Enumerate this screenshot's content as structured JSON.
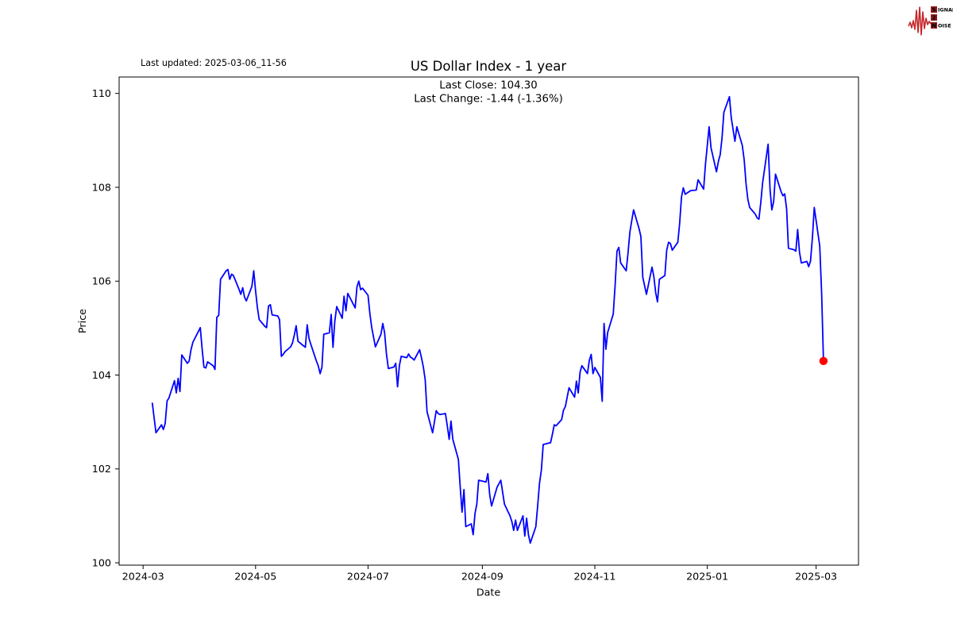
{
  "header": {
    "last_updated": "Last updated: 2025-03-06_11-56"
  },
  "logo": {
    "signal_initial": "S",
    "signal_rest": "IGNAL",
    "two": "2",
    "noise_initial": "N",
    "noise_rest": "OISE",
    "waveform_color": "#c4272b",
    "box_color": "#8e1d1d",
    "text_color": "#1a1a1a"
  },
  "chart_data": {
    "type": "line",
    "title": "US Dollar Index - 1 year",
    "subtitle_lines": [
      "Last Close: 104.30",
      "Last Change: -1.44 (-1.36%)"
    ],
    "xlabel": "Date",
    "ylabel": "Price",
    "last_close": 104.3,
    "last_change_abs": -1.44,
    "last_change_pct": -1.36,
    "line_color": "#0000ff",
    "marker_color": "#ff0000",
    "axis_color": "#000000",
    "grid": false,
    "legend_position": "none",
    "ylim": [
      99.95,
      110.35
    ],
    "yticks": [
      100,
      102,
      104,
      106,
      108,
      110
    ],
    "xlim": [
      "2024-02-17",
      "2025-03-24"
    ],
    "xticks": [
      {
        "value": "2024-03-01",
        "label": "2024-03"
      },
      {
        "value": "2024-05-01",
        "label": "2024-05"
      },
      {
        "value": "2024-07-01",
        "label": "2024-07"
      },
      {
        "value": "2024-09-01",
        "label": "2024-09"
      },
      {
        "value": "2024-11-01",
        "label": "2024-11"
      },
      {
        "value": "2025-01-01",
        "label": "2025-01"
      },
      {
        "value": "2025-03-01",
        "label": "2025-03"
      }
    ],
    "series": [
      {
        "name": "US Dollar Index",
        "points": [
          [
            "2024-03-06",
            103.4
          ],
          [
            "2024-03-08",
            102.77
          ],
          [
            "2024-03-11",
            102.94
          ],
          [
            "2024-03-12",
            102.84
          ],
          [
            "2024-03-13",
            102.97
          ],
          [
            "2024-03-14",
            103.45
          ],
          [
            "2024-03-15",
            103.51
          ],
          [
            "2024-03-18",
            103.88
          ],
          [
            "2024-03-19",
            103.62
          ],
          [
            "2024-03-20",
            103.93
          ],
          [
            "2024-03-21",
            103.65
          ],
          [
            "2024-03-22",
            104.43
          ],
          [
            "2024-03-25",
            104.25
          ],
          [
            "2024-03-26",
            104.3
          ],
          [
            "2024-03-27",
            104.54
          ],
          [
            "2024-03-28",
            104.7
          ],
          [
            "2024-04-01",
            105.01
          ],
          [
            "2024-04-02",
            104.56
          ],
          [
            "2024-04-03",
            104.17
          ],
          [
            "2024-04-04",
            104.15
          ],
          [
            "2024-04-05",
            104.28
          ],
          [
            "2024-04-08",
            104.2
          ],
          [
            "2024-04-09",
            104.12
          ],
          [
            "2024-04-10",
            105.23
          ],
          [
            "2024-04-11",
            105.27
          ],
          [
            "2024-04-12",
            106.04
          ],
          [
            "2024-04-15",
            106.22
          ],
          [
            "2024-04-16",
            106.25
          ],
          [
            "2024-04-17",
            106.04
          ],
          [
            "2024-04-18",
            106.15
          ],
          [
            "2024-04-19",
            106.12
          ],
          [
            "2024-04-22",
            105.83
          ],
          [
            "2024-04-23",
            105.72
          ],
          [
            "2024-04-24",
            105.86
          ],
          [
            "2024-04-25",
            105.66
          ],
          [
            "2024-04-26",
            105.58
          ],
          [
            "2024-04-29",
            105.89
          ],
          [
            "2024-04-30",
            106.22
          ],
          [
            "2024-05-01",
            105.8
          ],
          [
            "2024-05-02",
            105.44
          ],
          [
            "2024-05-03",
            105.18
          ],
          [
            "2024-05-06",
            105.04
          ],
          [
            "2024-05-07",
            105.01
          ],
          [
            "2024-05-08",
            105.47
          ],
          [
            "2024-05-09",
            105.5
          ],
          [
            "2024-05-10",
            105.28
          ],
          [
            "2024-05-13",
            105.26
          ],
          [
            "2024-05-14",
            105.18
          ],
          [
            "2024-05-15",
            104.4
          ],
          [
            "2024-05-16",
            104.44
          ],
          [
            "2024-05-17",
            104.5
          ],
          [
            "2024-05-20",
            104.6
          ],
          [
            "2024-05-21",
            104.68
          ],
          [
            "2024-05-22",
            104.85
          ],
          [
            "2024-05-23",
            105.05
          ],
          [
            "2024-05-24",
            104.72
          ],
          [
            "2024-05-28",
            104.59
          ],
          [
            "2024-05-29",
            105.07
          ],
          [
            "2024-05-30",
            104.78
          ],
          [
            "2024-05-31",
            104.65
          ],
          [
            "2024-06-03",
            104.3
          ],
          [
            "2024-06-04",
            104.2
          ],
          [
            "2024-06-05",
            104.03
          ],
          [
            "2024-06-06",
            104.17
          ],
          [
            "2024-06-07",
            104.87
          ],
          [
            "2024-06-10",
            104.9
          ],
          [
            "2024-06-11",
            105.29
          ],
          [
            "2024-06-12",
            104.59
          ],
          [
            "2024-06-13",
            105.15
          ],
          [
            "2024-06-14",
            105.46
          ],
          [
            "2024-06-17",
            105.21
          ],
          [
            "2024-06-18",
            105.68
          ],
          [
            "2024-06-19",
            105.37
          ],
          [
            "2024-06-20",
            105.74
          ],
          [
            "2024-06-24",
            105.43
          ],
          [
            "2024-06-25",
            105.88
          ],
          [
            "2024-06-26",
            106.0
          ],
          [
            "2024-06-27",
            105.82
          ],
          [
            "2024-06-28",
            105.85
          ],
          [
            "2024-07-01",
            105.7
          ],
          [
            "2024-07-02",
            105.3
          ],
          [
            "2024-07-03",
            105.01
          ],
          [
            "2024-07-05",
            104.6
          ],
          [
            "2024-07-08",
            104.87
          ],
          [
            "2024-07-09",
            105.1
          ],
          [
            "2024-07-10",
            104.9
          ],
          [
            "2024-07-11",
            104.45
          ],
          [
            "2024-07-12",
            104.14
          ],
          [
            "2024-07-15",
            104.17
          ],
          [
            "2024-07-16",
            104.25
          ],
          [
            "2024-07-17",
            103.75
          ],
          [
            "2024-07-18",
            104.2
          ],
          [
            "2024-07-19",
            104.4
          ],
          [
            "2024-07-22",
            104.37
          ],
          [
            "2024-07-23",
            104.45
          ],
          [
            "2024-07-24",
            104.38
          ],
          [
            "2024-07-25",
            104.36
          ],
          [
            "2024-07-26",
            104.32
          ],
          [
            "2024-07-29",
            104.54
          ],
          [
            "2024-07-30",
            104.36
          ],
          [
            "2024-07-31",
            104.17
          ],
          [
            "2024-08-01",
            103.9
          ],
          [
            "2024-08-02",
            103.22
          ],
          [
            "2024-08-05",
            102.77
          ],
          [
            "2024-08-06",
            103.0
          ],
          [
            "2024-08-07",
            103.24
          ],
          [
            "2024-08-08",
            103.18
          ],
          [
            "2024-08-09",
            103.16
          ],
          [
            "2024-08-12",
            103.18
          ],
          [
            "2024-08-13",
            102.91
          ],
          [
            "2024-08-14",
            102.63
          ],
          [
            "2024-08-15",
            103.02
          ],
          [
            "2024-08-16",
            102.63
          ],
          [
            "2024-08-19",
            102.2
          ],
          [
            "2024-08-20",
            101.61
          ],
          [
            "2024-08-21",
            101.08
          ],
          [
            "2024-08-22",
            101.56
          ],
          [
            "2024-08-23",
            100.77
          ],
          [
            "2024-08-26",
            100.83
          ],
          [
            "2024-08-27",
            100.6
          ],
          [
            "2024-08-28",
            101.05
          ],
          [
            "2024-08-29",
            101.25
          ],
          [
            "2024-08-30",
            101.76
          ],
          [
            "2024-09-03",
            101.72
          ],
          [
            "2024-09-04",
            101.9
          ],
          [
            "2024-09-05",
            101.44
          ],
          [
            "2024-09-06",
            101.21
          ],
          [
            "2024-09-09",
            101.61
          ],
          [
            "2024-09-11",
            101.76
          ],
          [
            "2024-09-13",
            101.25
          ],
          [
            "2024-09-16",
            101.0
          ],
          [
            "2024-09-17",
            100.88
          ],
          [
            "2024-09-18",
            100.69
          ],
          [
            "2024-09-19",
            100.91
          ],
          [
            "2024-09-20",
            100.69
          ],
          [
            "2024-09-23",
            101.0
          ],
          [
            "2024-09-24",
            100.57
          ],
          [
            "2024-09-25",
            100.95
          ],
          [
            "2024-09-26",
            100.6
          ],
          [
            "2024-09-27",
            100.42
          ],
          [
            "2024-09-30",
            100.77
          ],
          [
            "2024-10-01",
            101.21
          ],
          [
            "2024-10-02",
            101.69
          ],
          [
            "2024-10-03",
            101.98
          ],
          [
            "2024-10-04",
            102.52
          ],
          [
            "2024-10-07",
            102.55
          ],
          [
            "2024-10-08",
            102.56
          ],
          [
            "2024-10-09",
            102.74
          ],
          [
            "2024-10-10",
            102.94
          ],
          [
            "2024-10-11",
            102.92
          ],
          [
            "2024-10-14",
            103.05
          ],
          [
            "2024-10-15",
            103.25
          ],
          [
            "2024-10-16",
            103.33
          ],
          [
            "2024-10-17",
            103.53
          ],
          [
            "2024-10-18",
            103.73
          ],
          [
            "2024-10-21",
            103.53
          ],
          [
            "2024-10-22",
            103.87
          ],
          [
            "2024-10-23",
            103.62
          ],
          [
            "2024-10-24",
            104.06
          ],
          [
            "2024-10-25",
            104.2
          ],
          [
            "2024-10-28",
            104.03
          ],
          [
            "2024-10-29",
            104.31
          ],
          [
            "2024-10-30",
            104.44
          ],
          [
            "2024-10-31",
            104.03
          ],
          [
            "2024-11-01",
            104.16
          ],
          [
            "2024-11-04",
            103.95
          ],
          [
            "2024-11-05",
            103.44
          ],
          [
            "2024-11-06",
            105.1
          ],
          [
            "2024-11-07",
            104.55
          ],
          [
            "2024-11-08",
            104.91
          ],
          [
            "2024-11-11",
            105.3
          ],
          [
            "2024-11-12",
            105.9
          ],
          [
            "2024-11-13",
            106.64
          ],
          [
            "2024-11-14",
            106.72
          ],
          [
            "2024-11-15",
            106.39
          ],
          [
            "2024-11-18",
            106.22
          ],
          [
            "2024-11-19",
            106.6
          ],
          [
            "2024-11-20",
            107.04
          ],
          [
            "2024-11-21",
            107.28
          ],
          [
            "2024-11-22",
            107.52
          ],
          [
            "2024-11-25",
            107.12
          ],
          [
            "2024-11-26",
            106.95
          ],
          [
            "2024-11-27",
            106.08
          ],
          [
            "2024-11-29",
            105.72
          ],
          [
            "2024-12-02",
            106.3
          ],
          [
            "2024-12-03",
            106.1
          ],
          [
            "2024-12-04",
            105.76
          ],
          [
            "2024-12-05",
            105.56
          ],
          [
            "2024-12-06",
            106.04
          ],
          [
            "2024-12-09",
            106.12
          ],
          [
            "2024-12-10",
            106.66
          ],
          [
            "2024-12-11",
            106.83
          ],
          [
            "2024-12-12",
            106.8
          ],
          [
            "2024-12-13",
            106.66
          ],
          [
            "2024-12-16",
            106.83
          ],
          [
            "2024-12-17",
            107.23
          ],
          [
            "2024-12-18",
            107.79
          ],
          [
            "2024-12-19",
            107.99
          ],
          [
            "2024-12-20",
            107.85
          ],
          [
            "2024-12-23",
            107.93
          ],
          [
            "2024-12-26",
            107.94
          ],
          [
            "2024-12-27",
            108.16
          ],
          [
            "2024-12-30",
            107.96
          ],
          [
            "2024-12-31",
            108.49
          ],
          [
            "2025-01-02",
            109.29
          ],
          [
            "2025-01-03",
            108.84
          ],
          [
            "2025-01-06",
            108.33
          ],
          [
            "2025-01-07",
            108.55
          ],
          [
            "2025-01-08",
            108.7
          ],
          [
            "2025-01-09",
            109.06
          ],
          [
            "2025-01-10",
            109.6
          ],
          [
            "2025-01-13",
            109.93
          ],
          [
            "2025-01-14",
            109.48
          ],
          [
            "2025-01-15",
            109.23
          ],
          [
            "2025-01-16",
            108.98
          ],
          [
            "2025-01-17",
            109.29
          ],
          [
            "2025-01-20",
            108.89
          ],
          [
            "2025-01-21",
            108.58
          ],
          [
            "2025-01-22",
            108.08
          ],
          [
            "2025-01-23",
            107.74
          ],
          [
            "2025-01-24",
            107.57
          ],
          [
            "2025-01-27",
            107.43
          ],
          [
            "2025-01-28",
            107.35
          ],
          [
            "2025-01-29",
            107.32
          ],
          [
            "2025-01-30",
            107.68
          ],
          [
            "2025-01-31",
            108.1
          ],
          [
            "2025-02-03",
            108.92
          ],
          [
            "2025-02-04",
            107.96
          ],
          [
            "2025-02-05",
            107.52
          ],
          [
            "2025-02-06",
            107.7
          ],
          [
            "2025-02-07",
            108.28
          ],
          [
            "2025-02-10",
            107.91
          ],
          [
            "2025-02-11",
            107.82
          ],
          [
            "2025-02-12",
            107.86
          ],
          [
            "2025-02-13",
            107.54
          ],
          [
            "2025-02-14",
            106.7
          ],
          [
            "2025-02-17",
            106.67
          ],
          [
            "2025-02-18",
            106.64
          ],
          [
            "2025-02-19",
            107.1
          ],
          [
            "2025-02-20",
            106.62
          ],
          [
            "2025-02-21",
            106.39
          ],
          [
            "2025-02-24",
            106.42
          ],
          [
            "2025-02-25",
            106.31
          ],
          [
            "2025-02-26",
            106.43
          ],
          [
            "2025-02-27",
            106.93
          ],
          [
            "2025-02-28",
            107.57
          ],
          [
            "2025-03-03",
            106.75
          ],
          [
            "2025-03-04",
            105.74
          ],
          [
            "2025-03-05",
            104.3
          ]
        ]
      }
    ]
  }
}
